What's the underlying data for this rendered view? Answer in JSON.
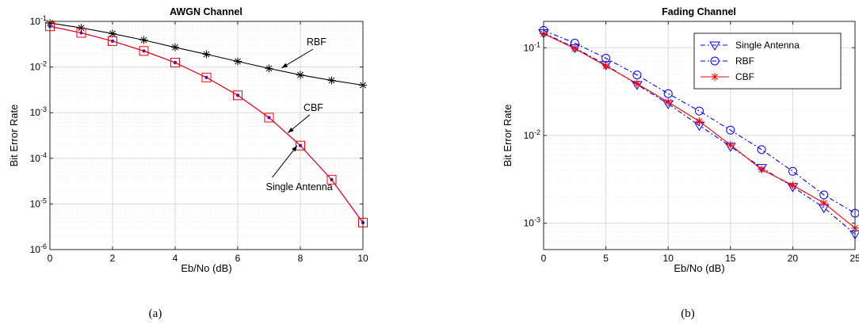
{
  "captions": [
    "(a)",
    "(b)"
  ],
  "chart_data": [
    {
      "type": "line",
      "title": "AWGN Channel",
      "xlabel": "Eb/No (dB)",
      "ylabel": "Bit Error Rate",
      "yscale": "log",
      "xlim": [
        0,
        10
      ],
      "ylim": [
        1e-06,
        0.1
      ],
      "xticks": [
        0,
        2,
        4,
        6,
        8,
        10
      ],
      "yticks": [
        {
          "v": 1e-06,
          "b": "10",
          "e": "-6"
        },
        {
          "v": 1e-05,
          "b": "10",
          "e": "-5"
        },
        {
          "v": 0.0001,
          "b": "10",
          "e": "-4"
        },
        {
          "v": 0.001,
          "b": "10",
          "e": "-3"
        },
        {
          "v": 0.01,
          "b": "10",
          "e": "-2"
        },
        {
          "v": 0.1,
          "b": "10",
          "e": "-1"
        }
      ],
      "grid": true,
      "legend": "none",
      "series": [
        {
          "name": "RBF",
          "color": "#000000",
          "marker": "asterisk",
          "style": "solid",
          "x": [
            0,
            1,
            2,
            3,
            4,
            5,
            6,
            7,
            8,
            9,
            10
          ],
          "y": [
            0.092,
            0.072,
            0.054,
            0.039,
            0.027,
            0.019,
            0.0133,
            0.0093,
            0.0067,
            0.0051,
            0.004
          ]
        },
        {
          "name": "CBF",
          "color": "#0000ff",
          "marker": "dot",
          "style": "solid",
          "x": [
            0,
            1,
            2,
            3,
            4,
            5,
            6,
            7,
            8,
            9,
            10
          ],
          "y": [
            0.078,
            0.056,
            0.037,
            0.0225,
            0.0125,
            0.0059,
            0.0024,
            0.00078,
            0.00019,
            3.4e-05,
            3.9e-06
          ]
        },
        {
          "name": "Single Antenna",
          "color": "#ff0000",
          "marker": "square",
          "style": "solid",
          "x": [
            0,
            1,
            2,
            3,
            4,
            5,
            6,
            7,
            8,
            9,
            10
          ],
          "y": [
            0.078,
            0.056,
            0.037,
            0.0225,
            0.0125,
            0.0059,
            0.0024,
            0.00078,
            0.00019,
            3.4e-05,
            3.9e-06
          ]
        }
      ],
      "annotations": [
        {
          "text": "RBF",
          "tx": 8.2,
          "ty": 0.03,
          "ax": 7.4,
          "ay": 0.0095
        },
        {
          "text": "CBF",
          "tx": 8.1,
          "ty": 0.0011,
          "ax": 7.6,
          "ay": 0.00036
        },
        {
          "text": "Single Antenna",
          "tx": 6.9,
          "ty": 2e-05,
          "ax": 7.9,
          "ay": 0.00019
        }
      ]
    },
    {
      "type": "line",
      "title": "Fading Channel",
      "xlabel": "Eb/No (dB)",
      "ylabel": "Bit Error Rate",
      "yscale": "log",
      "xlim": [
        0,
        25
      ],
      "ylim": [
        0.0005,
        0.2
      ],
      "xticks": [
        0,
        5,
        10,
        15,
        20,
        25
      ],
      "yticks": [
        {
          "v": 0.001,
          "b": "10",
          "e": "-3"
        },
        {
          "v": 0.01,
          "b": "10",
          "e": "-2"
        },
        {
          "v": 0.1,
          "b": "10",
          "e": "-1"
        }
      ],
      "grid": true,
      "legend": "top-right",
      "series": [
        {
          "name": "Single Antenna",
          "color": "#0000ff",
          "marker": "triangle-down",
          "style": "dashdot",
          "x": [
            0,
            2.5,
            5,
            7.5,
            10,
            12.5,
            15,
            17.5,
            20,
            22.5,
            25
          ],
          "y": [
            0.148,
            0.1,
            0.064,
            0.038,
            0.023,
            0.013,
            0.0075,
            0.0043,
            0.0026,
            0.0015,
            0.00075
          ]
        },
        {
          "name": "RBF",
          "color": "#0000ff",
          "marker": "circle",
          "style": "dashdot",
          "x": [
            0,
            2.5,
            5,
            7.5,
            10,
            12.5,
            15,
            17.5,
            20,
            22.5,
            25
          ],
          "y": [
            0.158,
            0.113,
            0.076,
            0.049,
            0.03,
            0.019,
            0.0115,
            0.0069,
            0.0039,
            0.0021,
            0.0013
          ]
        },
        {
          "name": "CBF",
          "color": "#ff0000",
          "marker": "asterisk",
          "style": "solid",
          "x": [
            0,
            2.5,
            5,
            7.5,
            10,
            12.5,
            15,
            17.5,
            20,
            22.5,
            25
          ],
          "y": [
            0.145,
            0.098,
            0.062,
            0.039,
            0.024,
            0.0145,
            0.0078,
            0.0041,
            0.0027,
            0.0017,
            0.00088
          ]
        }
      ]
    }
  ]
}
